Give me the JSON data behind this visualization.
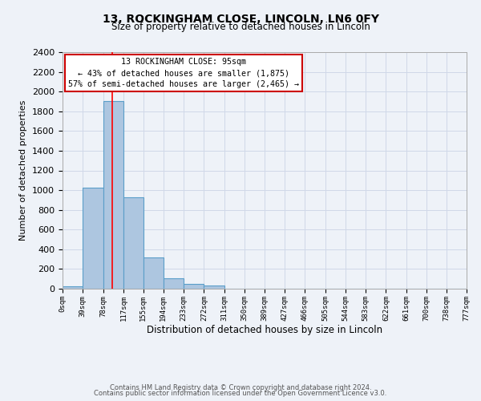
{
  "title": "13, ROCKINGHAM CLOSE, LINCOLN, LN6 0FY",
  "subtitle": "Size of property relative to detached houses in Lincoln",
  "xlabel": "Distribution of detached houses by size in Lincoln",
  "ylabel": "Number of detached properties",
  "footer_line1": "Contains HM Land Registry data © Crown copyright and database right 2024.",
  "footer_line2": "Contains public sector information licensed under the Open Government Licence v3.0.",
  "annotation_line1": "13 ROCKINGHAM CLOSE: 95sqm",
  "annotation_line2": "← 43% of detached houses are smaller (1,875)",
  "annotation_line3": "57% of semi-detached houses are larger (2,465) →",
  "bin_edges": [
    0,
    39,
    78,
    117,
    155,
    194,
    233,
    272,
    311,
    350,
    389,
    427,
    466,
    505,
    544,
    583,
    622,
    661,
    700,
    738,
    777
  ],
  "bar_values": [
    25,
    1025,
    1900,
    925,
    320,
    105,
    50,
    30,
    0,
    0,
    0,
    0,
    0,
    0,
    0,
    0,
    0,
    0,
    0,
    0
  ],
  "bar_color": "#adc6e0",
  "bar_edge_color": "#5a9ec9",
  "red_line_x": 95,
  "ylim": [
    0,
    2400
  ],
  "yticks": [
    0,
    200,
    400,
    600,
    800,
    1000,
    1200,
    1400,
    1600,
    1800,
    2000,
    2200,
    2400
  ],
  "xtick_labels": [
    "0sqm",
    "39sqm",
    "78sqm",
    "117sqm",
    "155sqm",
    "194sqm",
    "233sqm",
    "272sqm",
    "311sqm",
    "350sqm",
    "389sqm",
    "427sqm",
    "466sqm",
    "505sqm",
    "544sqm",
    "583sqm",
    "622sqm",
    "661sqm",
    "700sqm",
    "738sqm",
    "777sqm"
  ],
  "annotation_box_color": "#ffffff",
  "annotation_box_edge_color": "#cc0000",
  "grid_color": "#d0d8e8",
  "background_color": "#eef2f8"
}
